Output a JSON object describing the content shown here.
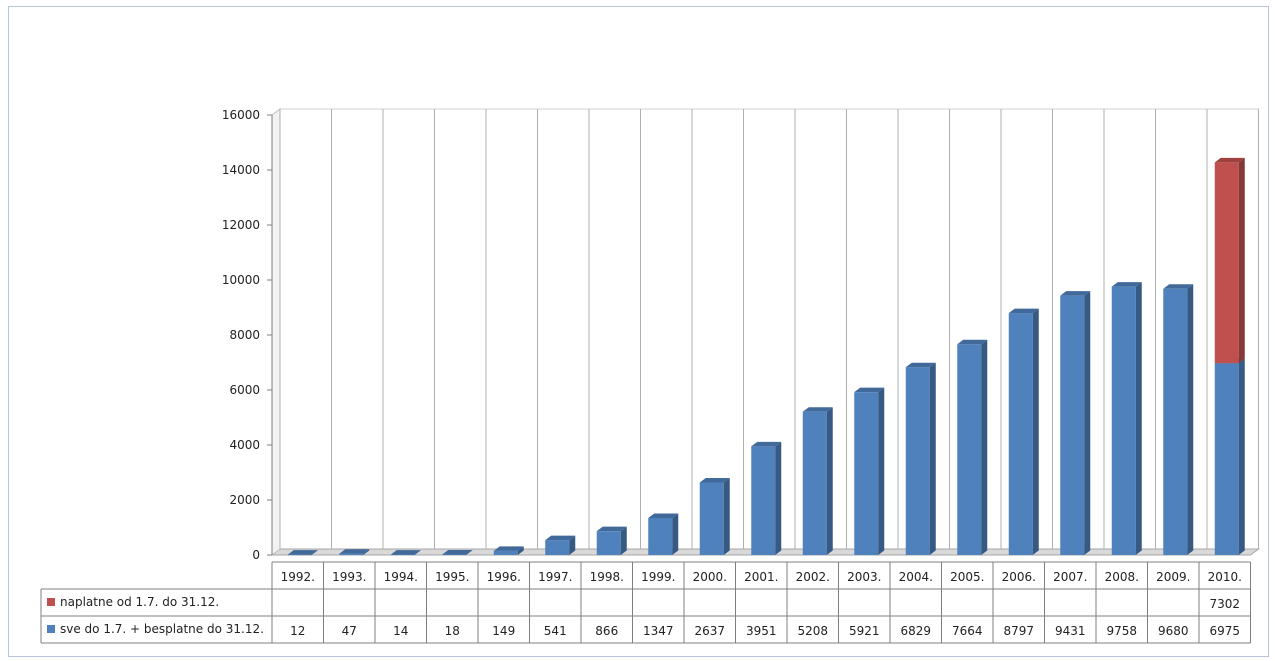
{
  "chart_data": {
    "type": "bar",
    "stacked": true,
    "three_d": true,
    "categories": [
      "1992.",
      "1993.",
      "1994.",
      "1995.",
      "1996.",
      "1997.",
      "1998.",
      "1999.",
      "2000.",
      "2001.",
      "2002.",
      "2003.",
      "2004.",
      "2005.",
      "2006.",
      "2007.",
      "2008.",
      "2009.",
      "2010."
    ],
    "series": [
      {
        "name": "sve do 1.7. + besplatne do 31.12.",
        "color": "#4f81bd",
        "values": [
          12,
          47,
          14,
          18,
          149,
          541,
          866,
          1347,
          2637,
          3951,
          5208,
          5921,
          6829,
          7664,
          8797,
          9431,
          9758,
          9680,
          6975
        ]
      },
      {
        "name": "naplatne od 1.7. do 31.12.",
        "color": "#c0504d",
        "values": [
          null,
          null,
          null,
          null,
          null,
          null,
          null,
          null,
          null,
          null,
          null,
          null,
          null,
          null,
          null,
          null,
          null,
          null,
          7302
        ]
      }
    ],
    "y_ticks": [
      0,
      2000,
      4000,
      6000,
      8000,
      10000,
      12000,
      14000,
      16000
    ],
    "ylim": [
      0,
      16000
    ],
    "grid": "vertical",
    "legend": "data-table",
    "data_table": {
      "rows": [
        {
          "label": "naplatne od 1.7.  do 31.12.",
          "cells": [
            "",
            "",
            "",
            "",
            "",
            "",
            "",
            "",
            "",
            "",
            "",
            "",
            "",
            "",
            "",
            "",
            "",
            "",
            "7302"
          ]
        },
        {
          "label": "sve do 1.7. + besplatne do 31.12.",
          "cells": [
            "12",
            "47",
            "14",
            "18",
            "149",
            "541",
            "866",
            "1347",
            "2637",
            "3951",
            "5208",
            "5921",
            "6829",
            "7664",
            "8797",
            "9431",
            "9758",
            "9680",
            "6975"
          ]
        }
      ]
    }
  }
}
